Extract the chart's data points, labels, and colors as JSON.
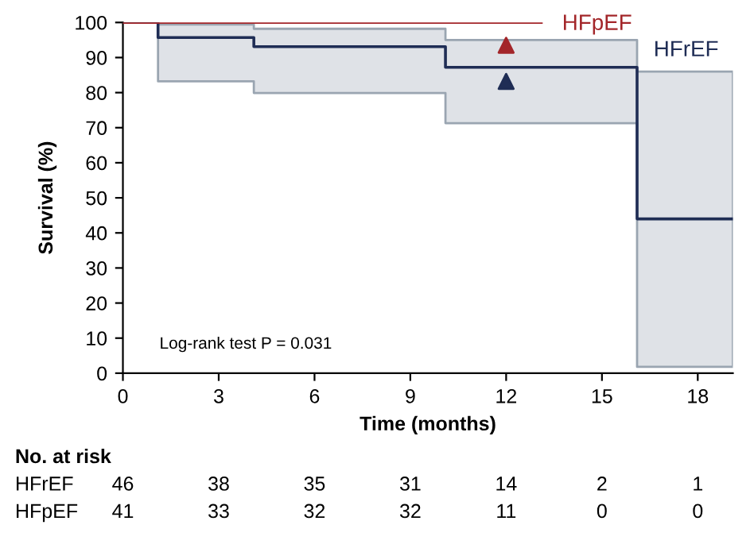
{
  "chart_data": {
    "type": "step",
    "xlabel": "Time (months)",
    "ylabel": "Survival (%)",
    "xlim": [
      0,
      19.1
    ],
    "xticks": [
      0,
      3,
      6,
      9,
      12,
      15,
      18
    ],
    "ylim": [
      0,
      100
    ],
    "yticks": [
      0,
      10,
      20,
      30,
      40,
      50,
      60,
      70,
      80,
      90,
      100
    ],
    "grid": false,
    "series": [
      {
        "name": "HFrEF",
        "color": "#1f2d55",
        "x": [
          0,
          1.1,
          4.1,
          10.1,
          16.1,
          19.1
        ],
        "values": [
          100,
          95.7,
          93.1,
          87.2,
          44,
          44
        ],
        "lower": [
          100,
          83.2,
          79.9,
          71.3,
          1.8,
          1.8
        ],
        "upper": [
          100,
          99.4,
          98.2,
          95,
          86,
          86
        ]
      },
      {
        "name": "HFpEF",
        "color": "#a3262a",
        "x": [
          0,
          13.1
        ],
        "values": [
          100,
          100
        ]
      },
      {
        "type": "scatter",
        "marker": "triangle",
        "color": "#a3262a",
        "x": [
          12
        ],
        "values": [
          93.5
        ]
      },
      {
        "type": "scatter",
        "marker": "triangle",
        "color": "#1f2d55",
        "x": [
          12
        ],
        "values": [
          83.2
        ]
      }
    ],
    "annotations": [
      "Log-rank test P = 0.031",
      "No. at risk",
      "HFrEF",
      "46",
      "38",
      "35",
      "31",
      "14",
      "2",
      "1",
      "HFpEF",
      "41",
      "33",
      "32",
      "32",
      "11",
      "0",
      "0"
    ]
  }
}
